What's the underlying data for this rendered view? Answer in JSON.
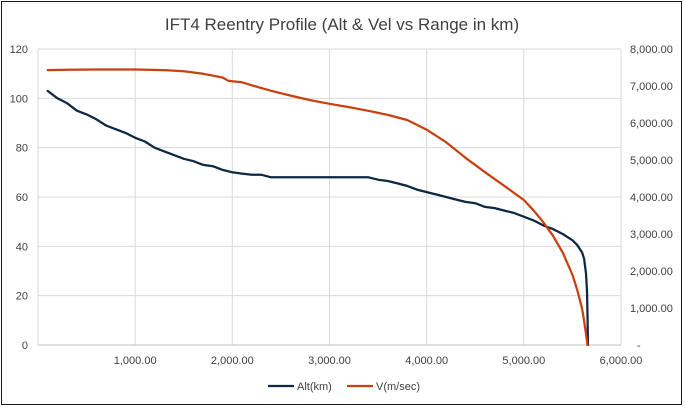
{
  "chart_data": {
    "type": "line",
    "title": "IFT4 Reentry Profile (Alt & Vel vs Range in km)",
    "xlabel": "",
    "x_axis": {
      "range": [
        0,
        6000
      ],
      "ticks": [
        1000,
        2000,
        3000,
        4000,
        5000,
        6000
      ],
      "tick_labels": [
        "1,000.00",
        "2,000.00",
        "3,000.00",
        "4,000.00",
        "5,000.00",
        "6,000.00"
      ]
    },
    "y_axis_left": {
      "range": [
        0,
        120
      ],
      "ticks": [
        0,
        20,
        40,
        60,
        80,
        100,
        120
      ],
      "tick_labels": [
        "0",
        "20",
        "40",
        "60",
        "80",
        "100",
        "120"
      ]
    },
    "y_axis_right": {
      "range": [
        0,
        8000
      ],
      "ticks": [
        0,
        1000,
        2000,
        3000,
        4000,
        5000,
        6000,
        7000,
        8000
      ],
      "tick_labels": [
        "-",
        "1,000.00",
        "2,000.00",
        "3,000.00",
        "4,000.00",
        "5,000.00",
        "6,000.00",
        "7,000.00",
        "8,000.00"
      ]
    },
    "grid": true,
    "legend_position": "bottom",
    "series": [
      {
        "name": "Alt(km)",
        "axis": "left",
        "color": "#0e2841",
        "points": [
          [
            100,
            103
          ],
          [
            200,
            100
          ],
          [
            300,
            98
          ],
          [
            400,
            95
          ],
          [
            500,
            93.5
          ],
          [
            600,
            91.5
          ],
          [
            700,
            89
          ],
          [
            800,
            87.5
          ],
          [
            900,
            86
          ],
          [
            1000,
            84
          ],
          [
            1100,
            82.5
          ],
          [
            1200,
            80
          ],
          [
            1300,
            78.5
          ],
          [
            1400,
            77
          ],
          [
            1500,
            75.5
          ],
          [
            1600,
            74.5
          ],
          [
            1700,
            73
          ],
          [
            1800,
            72.5
          ],
          [
            1900,
            71
          ],
          [
            2000,
            70
          ],
          [
            2100,
            69.5
          ],
          [
            2200,
            69
          ],
          [
            2300,
            69
          ],
          [
            2400,
            68
          ],
          [
            2500,
            68
          ],
          [
            2600,
            68
          ],
          [
            2700,
            68
          ],
          [
            2800,
            68
          ],
          [
            2900,
            68
          ],
          [
            3000,
            68
          ],
          [
            3100,
            68
          ],
          [
            3200,
            68
          ],
          [
            3300,
            68
          ],
          [
            3400,
            68
          ],
          [
            3500,
            67
          ],
          [
            3600,
            66.5
          ],
          [
            3700,
            65.5
          ],
          [
            3800,
            64.5
          ],
          [
            3900,
            63
          ],
          [
            4000,
            62
          ],
          [
            4100,
            61
          ],
          [
            4200,
            60
          ],
          [
            4300,
            59
          ],
          [
            4400,
            58
          ],
          [
            4500,
            57.5
          ],
          [
            4600,
            56
          ],
          [
            4700,
            55.5
          ],
          [
            4800,
            54.5
          ],
          [
            4900,
            53.5
          ],
          [
            5000,
            52
          ],
          [
            5100,
            50.5
          ],
          [
            5200,
            48.5
          ],
          [
            5300,
            47
          ],
          [
            5400,
            45
          ],
          [
            5500,
            42.5
          ],
          [
            5550,
            40.5
          ],
          [
            5600,
            37.5
          ],
          [
            5620,
            35
          ],
          [
            5640,
            29
          ],
          [
            5650,
            22
          ],
          [
            5655,
            12
          ],
          [
            5660,
            0
          ]
        ]
      },
      {
        "name": "V(m/sec)",
        "axis": "right",
        "color": "#c8410e",
        "points": [
          [
            100,
            7430
          ],
          [
            300,
            7440
          ],
          [
            600,
            7445
          ],
          [
            1000,
            7445
          ],
          [
            1300,
            7430
          ],
          [
            1500,
            7400
          ],
          [
            1700,
            7330
          ],
          [
            1900,
            7230
          ],
          [
            1960,
            7140
          ],
          [
            2000,
            7130
          ],
          [
            2100,
            7100
          ],
          [
            2200,
            7020
          ],
          [
            2400,
            6870
          ],
          [
            2600,
            6740
          ],
          [
            2800,
            6620
          ],
          [
            3000,
            6520
          ],
          [
            3200,
            6430
          ],
          [
            3400,
            6330
          ],
          [
            3600,
            6220
          ],
          [
            3800,
            6080
          ],
          [
            4000,
            5820
          ],
          [
            4200,
            5480
          ],
          [
            4400,
            5060
          ],
          [
            4600,
            4670
          ],
          [
            4800,
            4300
          ],
          [
            5000,
            3920
          ],
          [
            5100,
            3640
          ],
          [
            5200,
            3320
          ],
          [
            5300,
            2950
          ],
          [
            5400,
            2500
          ],
          [
            5500,
            1900
          ],
          [
            5550,
            1480
          ],
          [
            5600,
            980
          ],
          [
            5620,
            650
          ],
          [
            5640,
            300
          ],
          [
            5655,
            0
          ]
        ]
      }
    ]
  }
}
